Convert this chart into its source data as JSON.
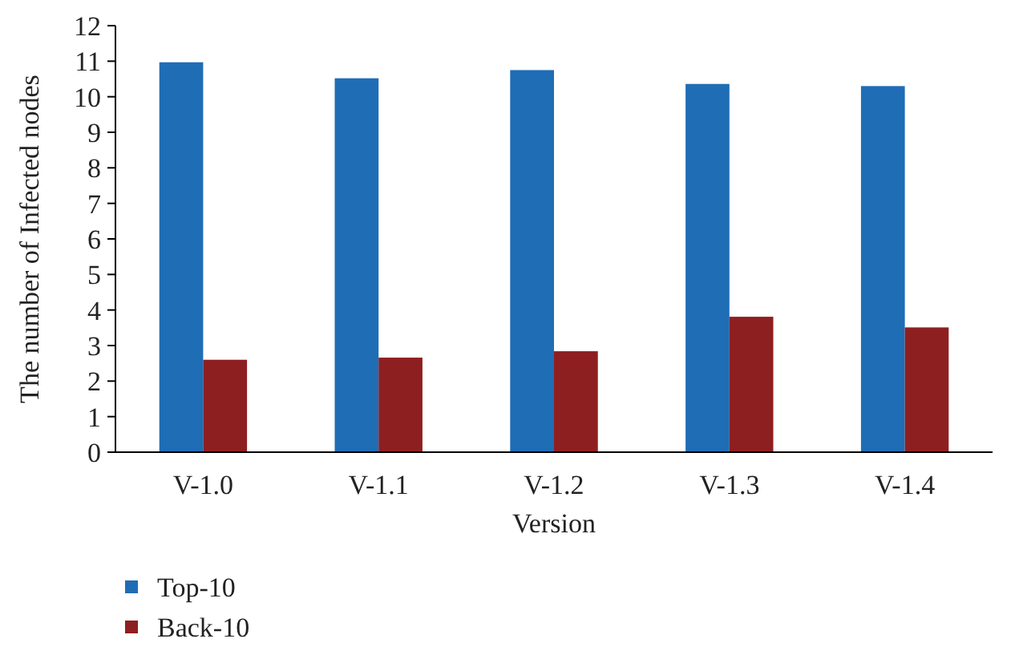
{
  "chart_data": {
    "type": "bar",
    "xlabel": "Version",
    "ylabel": "The number of Infected nodes",
    "categories": [
      "V-1.0",
      "V-1.1",
      "V-1.2",
      "V-1.3",
      "V-1.4"
    ],
    "series": [
      {
        "name": "Top-10",
        "color": "#1f6db5",
        "values": [
          10.97,
          10.52,
          10.75,
          10.36,
          10.3
        ]
      },
      {
        "name": "Back-10",
        "color": "#8e1f20",
        "values": [
          2.6,
          2.66,
          2.84,
          3.81,
          3.51
        ]
      }
    ],
    "ylim": [
      0,
      12
    ],
    "yticks": [
      0,
      1,
      2,
      3,
      4,
      5,
      6,
      7,
      8,
      9,
      10,
      11,
      12
    ],
    "grid": false,
    "legend": "bottom left"
  }
}
